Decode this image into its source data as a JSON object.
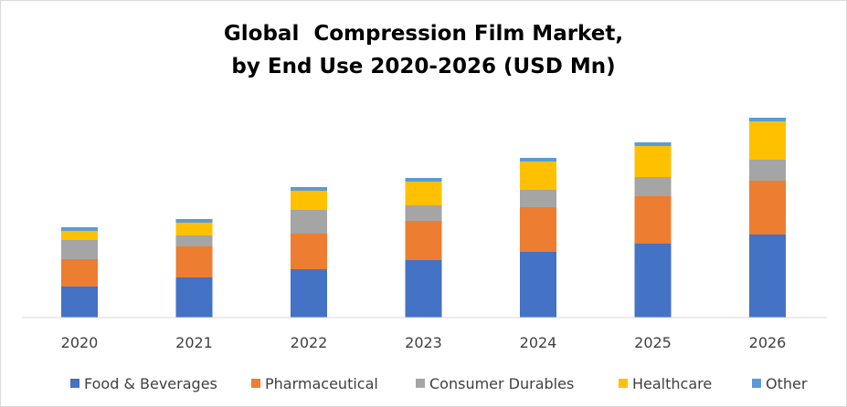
{
  "chart_data": {
    "type": "bar",
    "stacked": true,
    "title": "Global  Compression Film Market,",
    "subtitle": "by End Use 2020-2026 (USD Mn)",
    "xlabel": "",
    "ylabel": "",
    "ylim": [
      0,
      230
    ],
    "grid": false,
    "legend_position": "bottom",
    "categories": [
      "2020",
      "2021",
      "2022",
      "2023",
      "2024",
      "2025",
      "2026"
    ],
    "series": [
      {
        "name": "Food & Beverages",
        "color": "#4472C4",
        "values": [
          34,
          44,
          53,
          63,
          72,
          81,
          91
        ]
      },
      {
        "name": "Pharmaceutical",
        "color": "#ED7D31",
        "values": [
          30,
          34,
          39,
          43,
          49,
          52,
          59
        ]
      },
      {
        "name": "Consumer Durables",
        "color": "#A5A5A5",
        "values": [
          21,
          12,
          26,
          17,
          19,
          21,
          23
        ]
      },
      {
        "name": "Healthcare",
        "color": "#FFC000",
        "values": [
          10,
          14,
          21,
          26,
          31,
          34,
          42
        ]
      },
      {
        "name": "Other",
        "color": "#5B9BD5",
        "values": [
          4,
          4,
          4,
          4,
          4,
          4,
          4
        ]
      }
    ]
  }
}
